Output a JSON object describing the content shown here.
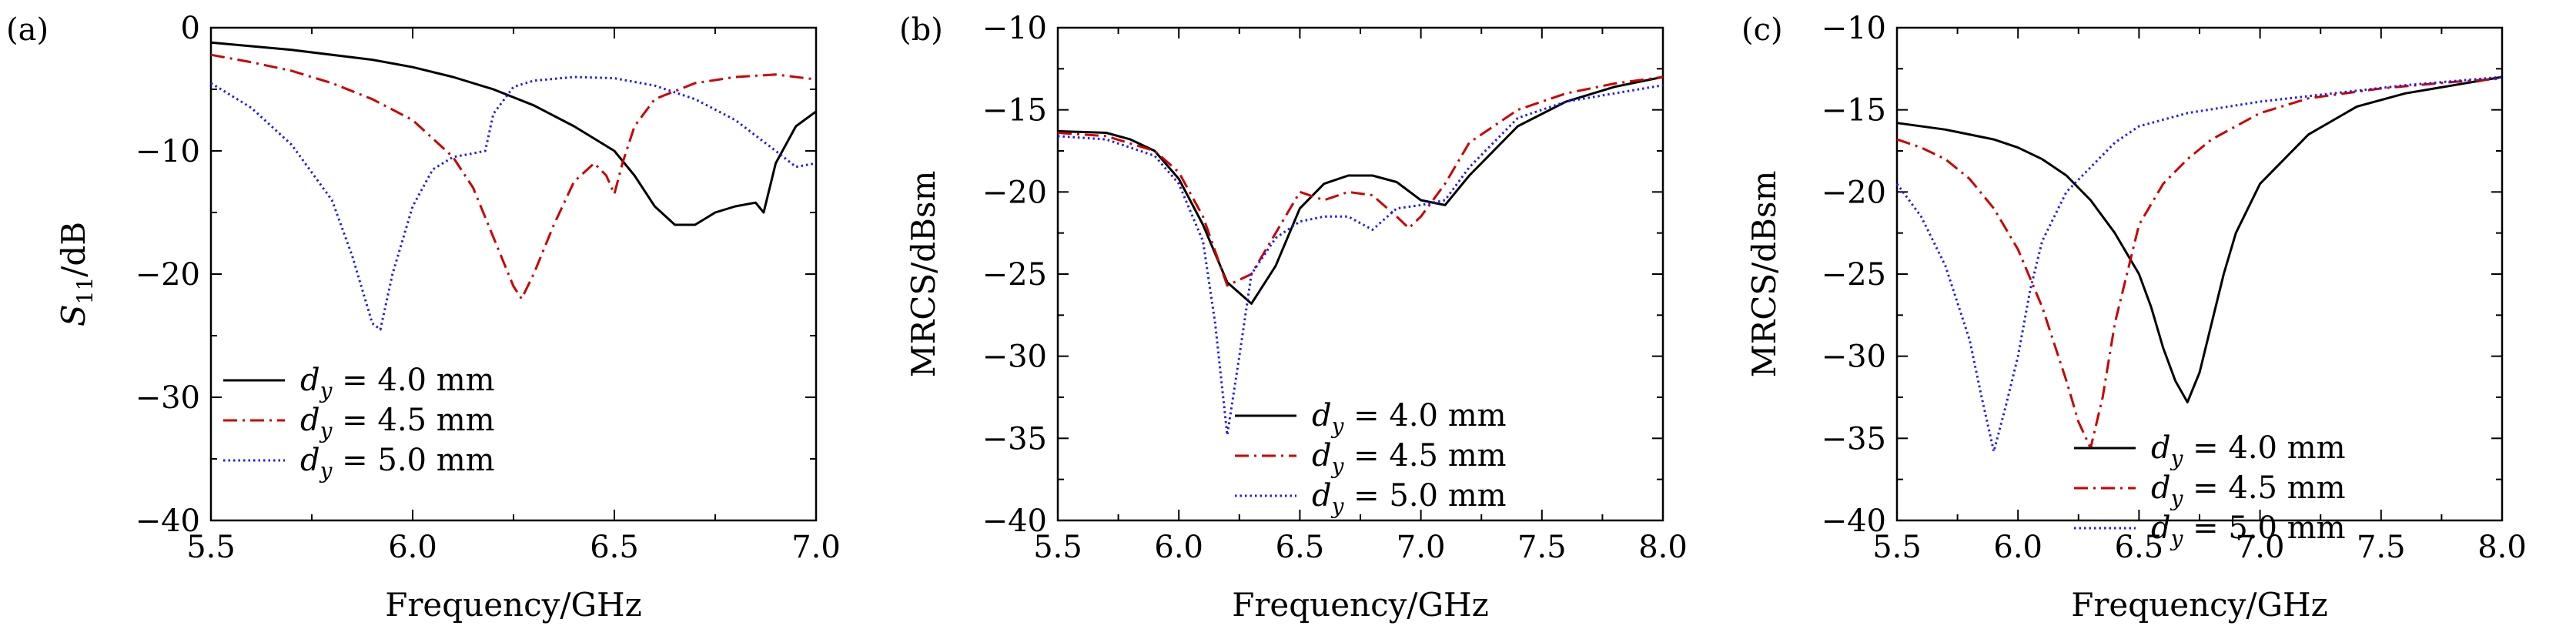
{
  "figure": {
    "caption": ""
  },
  "chart_data": [
    {
      "panel": "(a)",
      "type": "line",
      "xlabel": "Frequency/GHz",
      "ylabel_main": "S",
      "ylabel_sub": "11",
      "ylabel_unit": "/dB",
      "xlim": [
        5.5,
        7.0
      ],
      "ylim": [
        -40,
        0
      ],
      "xticks": [
        5.5,
        6.0,
        6.5,
        7.0
      ],
      "xtick_labels": [
        "5.5",
        "6.0",
        "6.5",
        "7.0"
      ],
      "yticks": [
        -40,
        -30,
        -20,
        -10,
        0
      ],
      "ytick_labels": [
        "−40",
        "−30",
        "−20",
        "−10",
        "0"
      ],
      "legend_position": "bottom-left",
      "series": [
        {
          "name": "d_y = 4.0 mm",
          "legend": {
            "var": "d",
            "sub": "y",
            "text": " = 4.0 mm"
          },
          "color": "#000000",
          "dash": "solid",
          "x": [
            5.5,
            5.7,
            5.9,
            6.0,
            6.1,
            6.2,
            6.3,
            6.4,
            6.5,
            6.55,
            6.6,
            6.65,
            6.7,
            6.75,
            6.8,
            6.85,
            6.87,
            6.9,
            6.95,
            7.0
          ],
          "y": [
            -1.2,
            -1.8,
            -2.6,
            -3.2,
            -4.0,
            -5.0,
            -6.3,
            -8.0,
            -10.0,
            -12.0,
            -14.5,
            -16.0,
            -16.0,
            -15.0,
            -14.5,
            -14.2,
            -15.0,
            -11.0,
            -8.0,
            -6.8
          ]
        },
        {
          "name": "d_y = 4.5 mm",
          "legend": {
            "var": "d",
            "sub": "y",
            "text": " = 4.5 mm"
          },
          "color": "#cc0000",
          "dash": "dashdot",
          "x": [
            5.5,
            5.6,
            5.7,
            5.8,
            5.9,
            6.0,
            6.1,
            6.15,
            6.2,
            6.25,
            6.27,
            6.3,
            6.35,
            6.4,
            6.45,
            6.48,
            6.5,
            6.52,
            6.55,
            6.6,
            6.7,
            6.8,
            6.9,
            7.0
          ],
          "y": [
            -2.2,
            -2.8,
            -3.5,
            -4.5,
            -5.8,
            -7.5,
            -10.5,
            -13.0,
            -17.0,
            -21.0,
            -22.0,
            -20.0,
            -16.0,
            -12.5,
            -11.0,
            -12.0,
            -13.5,
            -11.0,
            -8.0,
            -5.8,
            -4.5,
            -4.0,
            -3.8,
            -4.2
          ]
        },
        {
          "name": "d_y = 5.0 mm",
          "legend": {
            "var": "d",
            "sub": "y",
            "text": " = 5.0 mm"
          },
          "color": "#1a1aff",
          "dash": "dotted",
          "x": [
            5.5,
            5.6,
            5.7,
            5.8,
            5.85,
            5.9,
            5.92,
            5.95,
            6.0,
            6.05,
            6.1,
            6.15,
            6.18,
            6.2,
            6.25,
            6.3,
            6.4,
            6.5,
            6.6,
            6.7,
            6.8,
            6.9,
            6.95,
            7.0
          ],
          "y": [
            -4.5,
            -6.5,
            -9.5,
            -14.0,
            -18.5,
            -24.0,
            -24.5,
            -20.0,
            -14.5,
            -11.5,
            -10.5,
            -10.2,
            -10.0,
            -7.0,
            -4.8,
            -4.3,
            -4.0,
            -4.1,
            -4.7,
            -5.8,
            -7.5,
            -10.0,
            -11.3,
            -11.0
          ]
        }
      ]
    },
    {
      "panel": "(b)",
      "type": "line",
      "xlabel": "Frequency/GHz",
      "ylabel": "MRCS/dBsm",
      "xlim": [
        5.5,
        8.0
      ],
      "ylim": [
        -40,
        -10
      ],
      "xticks": [
        5.5,
        6.0,
        6.5,
        7.0,
        7.5,
        8.0
      ],
      "xtick_labels": [
        "5.5",
        "6.0",
        "6.5",
        "7.0",
        "7.5",
        "8.0"
      ],
      "yticks": [
        -40,
        -35,
        -30,
        -25,
        -20,
        -15,
        -10
      ],
      "ytick_labels": [
        "−40",
        "−35",
        "−30",
        "−25",
        "−20",
        "−15",
        "−10"
      ],
      "legend_position": "bottom-right",
      "series": [
        {
          "name": "d_y = 4.0 mm",
          "legend": {
            "var": "d",
            "sub": "y",
            "text": " = 4.0 mm"
          },
          "color": "#000000",
          "dash": "solid",
          "x": [
            5.5,
            5.7,
            5.8,
            5.9,
            6.0,
            6.1,
            6.2,
            6.3,
            6.4,
            6.5,
            6.6,
            6.7,
            6.8,
            6.9,
            7.0,
            7.1,
            7.2,
            7.4,
            7.6,
            7.8,
            8.0
          ],
          "y": [
            -16.3,
            -16.4,
            -16.8,
            -17.5,
            -19.2,
            -22.0,
            -25.5,
            -26.8,
            -24.5,
            -21.0,
            -19.5,
            -19.0,
            -19.0,
            -19.4,
            -20.5,
            -20.8,
            -19.0,
            -16.0,
            -14.5,
            -13.6,
            -13.0
          ]
        },
        {
          "name": "d_y = 4.5 mm",
          "legend": {
            "var": "d",
            "sub": "y",
            "text": " = 4.5 mm"
          },
          "color": "#cc0000",
          "dash": "dashdot",
          "x": [
            5.5,
            5.7,
            5.9,
            6.0,
            6.1,
            6.2,
            6.3,
            6.4,
            6.5,
            6.6,
            6.7,
            6.8,
            6.9,
            6.95,
            7.0,
            7.1,
            7.2,
            7.4,
            7.6,
            7.8,
            8.0
          ],
          "y": [
            -16.4,
            -16.6,
            -17.5,
            -18.8,
            -21.5,
            -25.7,
            -25.0,
            -22.5,
            -20.0,
            -20.5,
            -20.0,
            -20.2,
            -21.5,
            -22.2,
            -21.5,
            -19.5,
            -17.0,
            -15.0,
            -14.0,
            -13.4,
            -13.0
          ]
        },
        {
          "name": "d_y = 5.0 mm",
          "legend": {
            "var": "d",
            "sub": "y",
            "text": " = 5.0 mm"
          },
          "color": "#1a1aff",
          "dash": "dotted",
          "x": [
            5.5,
            5.7,
            5.9,
            6.0,
            6.1,
            6.15,
            6.2,
            6.25,
            6.3,
            6.4,
            6.5,
            6.6,
            6.7,
            6.8,
            6.9,
            7.0,
            7.1,
            7.2,
            7.4,
            7.6,
            7.8,
            8.0
          ],
          "y": [
            -16.6,
            -16.8,
            -17.8,
            -19.5,
            -23.0,
            -28.0,
            -34.8,
            -30.0,
            -25.0,
            -22.8,
            -21.8,
            -21.5,
            -21.5,
            -22.3,
            -21.0,
            -20.8,
            -20.5,
            -18.5,
            -15.5,
            -14.5,
            -14.0,
            -13.5
          ]
        }
      ]
    },
    {
      "panel": "(c)",
      "type": "line",
      "xlabel": "Frequency/GHz",
      "ylabel": "MRCS/dBsm",
      "xlim": [
        5.5,
        8.0
      ],
      "ylim": [
        -40,
        -10
      ],
      "xticks": [
        5.5,
        6.0,
        6.5,
        7.0,
        7.5,
        8.0
      ],
      "xtick_labels": [
        "5.5",
        "6.0",
        "6.5",
        "7.0",
        "7.5",
        "8.0"
      ],
      "yticks": [
        -40,
        -35,
        -30,
        -25,
        -20,
        -15,
        -10
      ],
      "ytick_labels": [
        "−40",
        "−35",
        "−30",
        "−25",
        "−20",
        "−15",
        "−10"
      ],
      "legend_position": "bottom-right",
      "series": [
        {
          "name": "d_y = 4.0 mm",
          "legend": {
            "var": "d",
            "sub": "y",
            "text": " = 4.0 mm"
          },
          "color": "#000000",
          "dash": "solid",
          "x": [
            5.5,
            5.7,
            5.9,
            6.0,
            6.1,
            6.2,
            6.3,
            6.4,
            6.5,
            6.55,
            6.6,
            6.65,
            6.7,
            6.75,
            6.8,
            6.85,
            6.9,
            7.0,
            7.2,
            7.4,
            7.6,
            7.8,
            8.0
          ],
          "y": [
            -15.8,
            -16.2,
            -16.8,
            -17.3,
            -18.0,
            -19.0,
            -20.5,
            -22.5,
            -25.0,
            -27.0,
            -29.5,
            -31.5,
            -32.8,
            -31.0,
            -28.0,
            -25.0,
            -22.5,
            -19.5,
            -16.5,
            -14.8,
            -14.0,
            -13.5,
            -13.0
          ]
        },
        {
          "name": "d_y = 4.5 mm",
          "legend": {
            "var": "d",
            "sub": "y",
            "text": " = 4.5 mm"
          },
          "color": "#cc0000",
          "dash": "dashdot",
          "x": [
            5.5,
            5.6,
            5.7,
            5.8,
            5.9,
            6.0,
            6.1,
            6.2,
            6.25,
            6.3,
            6.35,
            6.4,
            6.5,
            6.6,
            6.7,
            6.8,
            7.0,
            7.2,
            7.5,
            7.8,
            8.0
          ],
          "y": [
            -16.8,
            -17.3,
            -18.0,
            -19.2,
            -21.0,
            -23.5,
            -27.0,
            -31.5,
            -34.0,
            -35.6,
            -32.5,
            -28.0,
            -22.0,
            -19.5,
            -18.0,
            -16.8,
            -15.2,
            -14.3,
            -13.7,
            -13.3,
            -13.1
          ]
        },
        {
          "name": "d_y = 5.0 mm",
          "legend": {
            "var": "d",
            "sub": "y",
            "text": " = 5.0 mm"
          },
          "color": "#1a1aff",
          "dash": "dotted",
          "x": [
            5.5,
            5.6,
            5.7,
            5.8,
            5.85,
            5.9,
            5.95,
            6.0,
            6.05,
            6.1,
            6.2,
            6.3,
            6.4,
            6.5,
            6.7,
            7.0,
            7.3,
            7.6,
            8.0
          ],
          "y": [
            -19.5,
            -21.5,
            -24.5,
            -29.0,
            -32.5,
            -35.8,
            -33.0,
            -30.0,
            -26.0,
            -23.0,
            -20.0,
            -18.5,
            -17.0,
            -16.0,
            -15.2,
            -14.5,
            -14.0,
            -13.5,
            -13.0
          ]
        }
      ]
    }
  ]
}
